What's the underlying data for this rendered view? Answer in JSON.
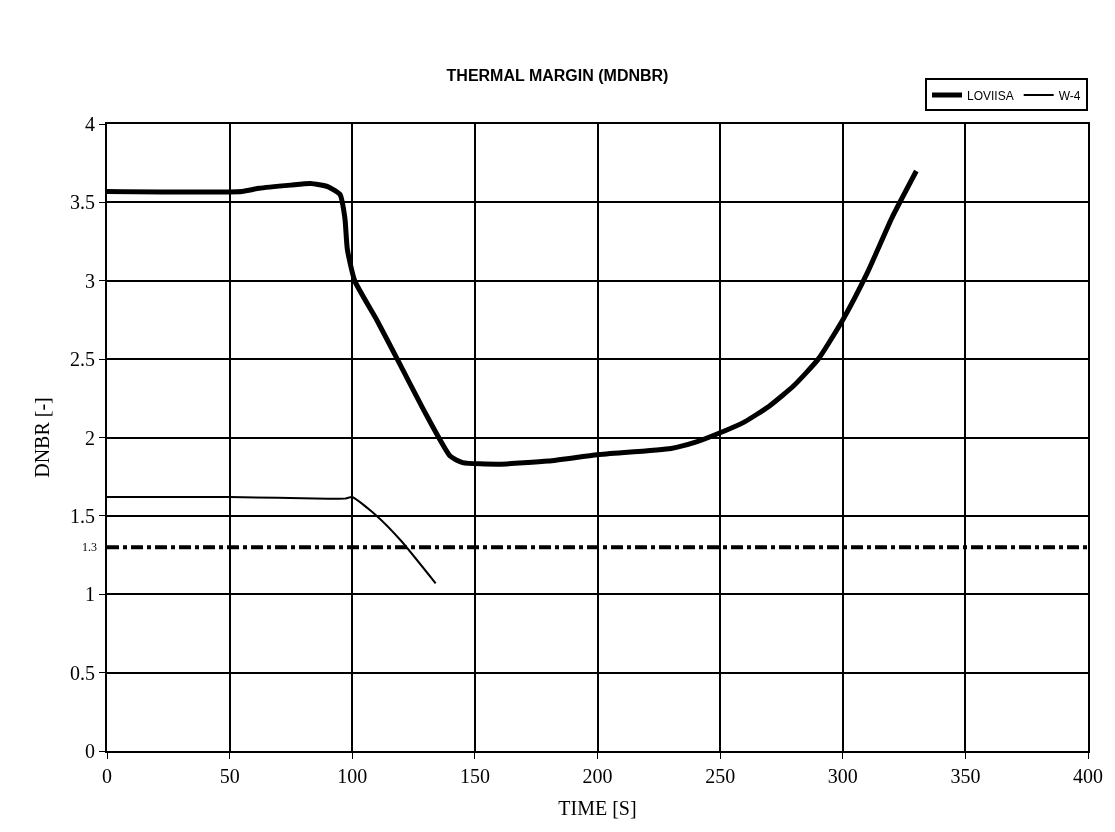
{
  "chart_data": {
    "type": "line",
    "title": "THERMAL MARGIN (MDNBR)",
    "xlabel": "TIME [S]",
    "ylabel": "DNBR [-]",
    "series": [
      {
        "name": "LOVIISA",
        "color": "#000000",
        "x": [
          0,
          55,
          62,
          75,
          83,
          90,
          95,
          97,
          98,
          101,
          110,
          120,
          130,
          140,
          145,
          160,
          180,
          200,
          230,
          240,
          250,
          260,
          270,
          280,
          290,
          300,
          310,
          320,
          330
        ],
        "values": [
          3.57,
          3.57,
          3.59,
          3.61,
          3.62,
          3.6,
          3.55,
          3.4,
          3.2,
          3.0,
          2.75,
          2.45,
          2.15,
          1.88,
          1.84,
          1.83,
          1.85,
          1.89,
          1.93,
          1.97,
          2.03,
          2.1,
          2.2,
          2.33,
          2.5,
          2.75,
          3.05,
          3.4,
          3.7
        ]
      },
      {
        "name": "W-4",
        "color": "#000000",
        "x": [
          0,
          50,
          90,
          97,
          100,
          110,
          120,
          134
        ],
        "values": [
          1.62,
          1.62,
          1.61,
          1.61,
          1.62,
          1.5,
          1.34,
          1.07
        ]
      }
    ],
    "xlim": [
      0,
      400
    ],
    "xticks": [
      0,
      50,
      100,
      150,
      200,
      250,
      300,
      350,
      400
    ],
    "ylim": [
      0,
      4
    ],
    "yticks": [
      0,
      0.5,
      1,
      1.5,
      2,
      2.5,
      3,
      3.5,
      4
    ],
    "ref_lines": [
      {
        "axis": "y",
        "value": 1.3,
        "label": "1.3",
        "color": "#000000",
        "line_style": "dashdot"
      }
    ],
    "grid": true,
    "legend": "top right",
    "line_style": "solid",
    "marker": "none"
  }
}
